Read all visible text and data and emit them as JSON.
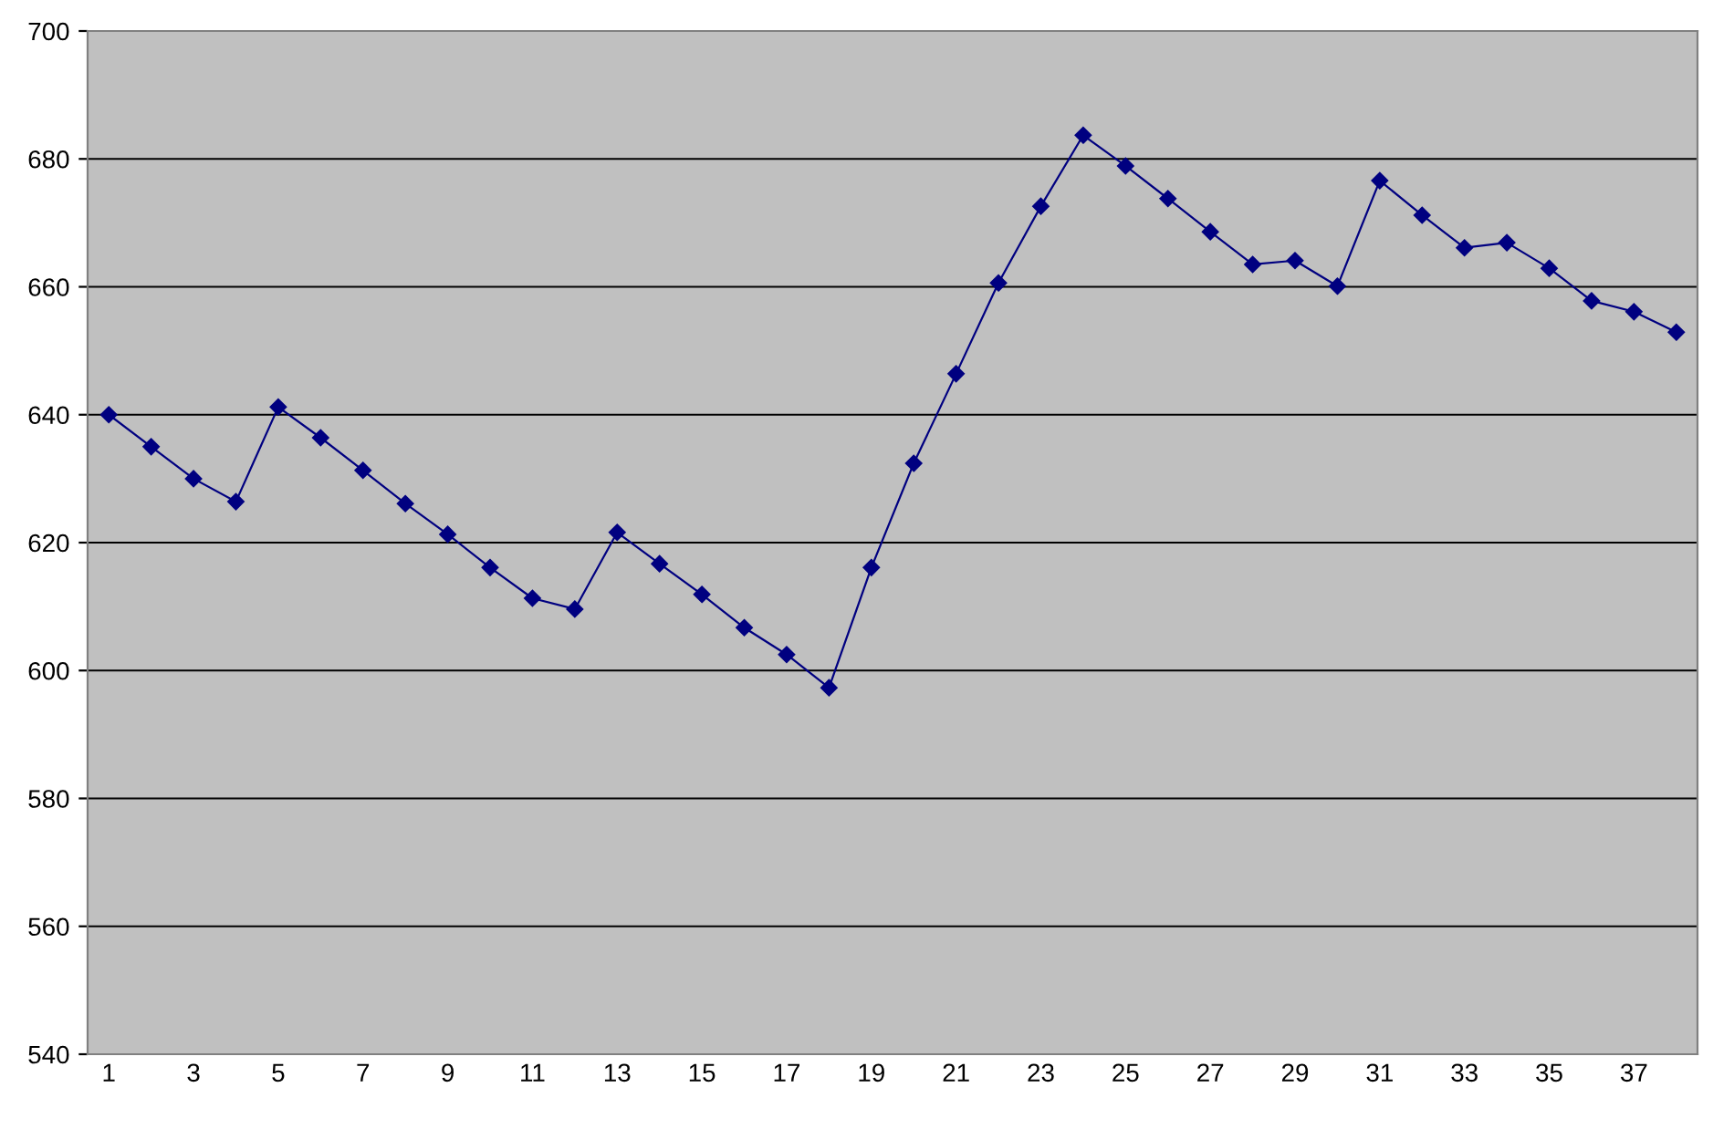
{
  "chart_data": {
    "type": "line",
    "categories": [
      "1",
      null,
      "3",
      null,
      "5",
      null,
      "7",
      null,
      "9",
      null,
      "11",
      null,
      "13",
      null,
      "15",
      null,
      "17",
      null,
      "19",
      null,
      "21",
      null,
      "23",
      null,
      "25",
      null,
      "27",
      null,
      "29",
      null,
      "31",
      null,
      "33",
      null,
      "35",
      null,
      "37",
      null
    ],
    "series": [
      {
        "color": "#000080",
        "values": [
          640,
          635,
          630,
          626.4,
          641.2,
          636.4,
          631.3,
          626.1,
          621.3,
          616.1,
          611.3,
          609.6,
          621.6,
          616.7,
          611.9,
          606.7,
          602.5,
          597.3,
          616.1,
          632.4,
          646.4,
          660.6,
          672.6,
          683.7,
          678.9,
          673.8,
          668.6,
          663.5,
          664.1,
          660.1,
          676.6,
          671.2,
          666.1,
          666.9,
          662.9,
          657.8,
          656.1,
          652.9
        ]
      }
    ],
    "ylim": [
      540,
      700
    ],
    "yticks": [
      540,
      560,
      580,
      600,
      620,
      640,
      660,
      680,
      700
    ],
    "grid": "y",
    "marker": "diamond",
    "line_style": "solid"
  }
}
